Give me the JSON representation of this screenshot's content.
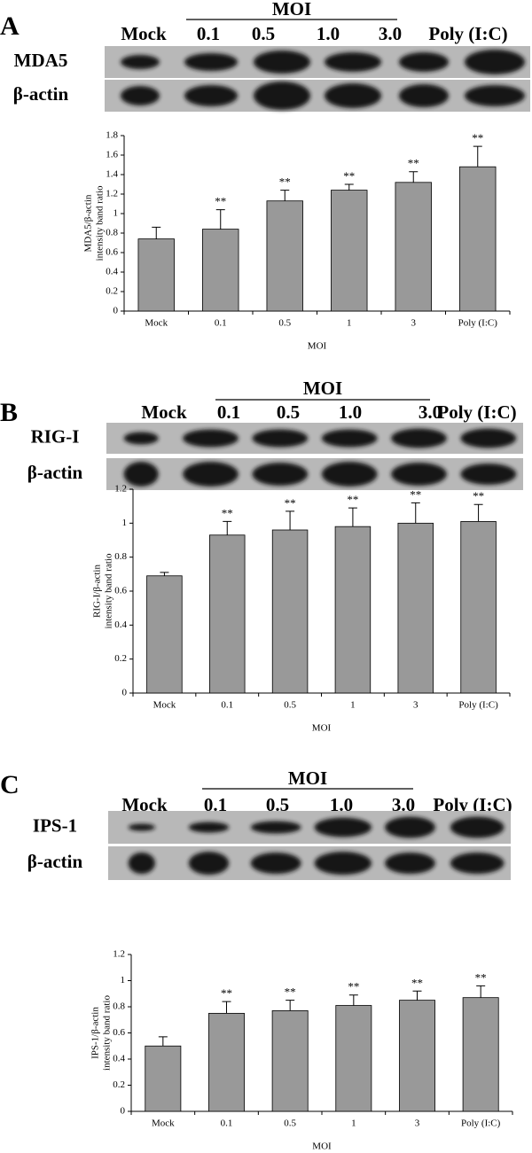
{
  "blots": [
    {
      "panel": "A",
      "group_label": "MOI",
      "lanes": [
        "Mock",
        "0.1",
        "0.5",
        "1.0",
        "3.0",
        "Poly (I:C)"
      ],
      "rows": [
        "MDA5",
        "β-actin"
      ]
    },
    {
      "panel": "B",
      "group_label": "MOI",
      "lanes": [
        "Mock",
        "0.1",
        "0.5",
        "1.0",
        "3.0",
        "Poly (I:C)"
      ],
      "rows": [
        "RIG-I",
        "β-actin"
      ]
    },
    {
      "panel": "C",
      "group_label": "MOI",
      "lanes": [
        "Mock",
        "0.1",
        "0.5",
        "1.0",
        "3.0",
        "Poly (I:C)"
      ],
      "rows": [
        "IPS-1",
        "β-actin"
      ]
    }
  ],
  "chart_data": [
    {
      "type": "bar",
      "xlabel": "MOI",
      "ylabel": [
        "MDA5/β-actin",
        "intensity band ratio"
      ],
      "categories": [
        "Mock",
        "0.1",
        "0.5",
        "1",
        "3",
        "Poly (I:C)"
      ],
      "values": [
        0.74,
        0.84,
        1.13,
        1.24,
        1.32,
        1.48
      ],
      "errors": [
        0.12,
        0.2,
        0.11,
        0.06,
        0.11,
        0.21
      ],
      "significance": [
        null,
        "**",
        "**",
        "**",
        "**",
        "**"
      ],
      "color": "#999999",
      "ylim": [
        0,
        1.8
      ],
      "yticks": [
        0,
        0.2,
        0.4,
        0.6,
        0.8,
        1,
        1.2,
        1.4,
        1.6,
        1.8
      ]
    },
    {
      "type": "bar",
      "xlabel": "MOI",
      "ylabel": [
        "RIG-I/β-actin",
        "intensity band ratio"
      ],
      "categories": [
        "Mock",
        "0.1",
        "0.5",
        "1",
        "3",
        "Poly (I:C)"
      ],
      "values": [
        0.69,
        0.93,
        0.96,
        0.98,
        1.0,
        1.01
      ],
      "errors": [
        0.02,
        0.08,
        0.11,
        0.11,
        0.12,
        0.1
      ],
      "significance": [
        null,
        "**",
        "**",
        "**",
        "**",
        "**"
      ],
      "color": "#999999",
      "ylim": [
        0,
        1.2
      ],
      "yticks": [
        0,
        0.2,
        0.4,
        0.6,
        0.8,
        1,
        1.2
      ]
    },
    {
      "type": "bar",
      "xlabel": "MOI",
      "ylabel": [
        "IPS-1/β-actin",
        "intensity band ratio"
      ],
      "categories": [
        "Mock",
        "0.1",
        "0.5",
        "1",
        "3",
        "Poly (I:C)"
      ],
      "values": [
        0.5,
        0.75,
        0.77,
        0.81,
        0.85,
        0.87
      ],
      "errors": [
        0.07,
        0.09,
        0.08,
        0.08,
        0.07,
        0.09
      ],
      "significance": [
        null,
        "**",
        "**",
        "**",
        "**",
        "**"
      ],
      "color": "#999999",
      "ylim": [
        0,
        1.2
      ],
      "yticks": [
        0,
        0.2,
        0.4,
        0.6,
        0.8,
        1,
        1.2
      ]
    }
  ]
}
